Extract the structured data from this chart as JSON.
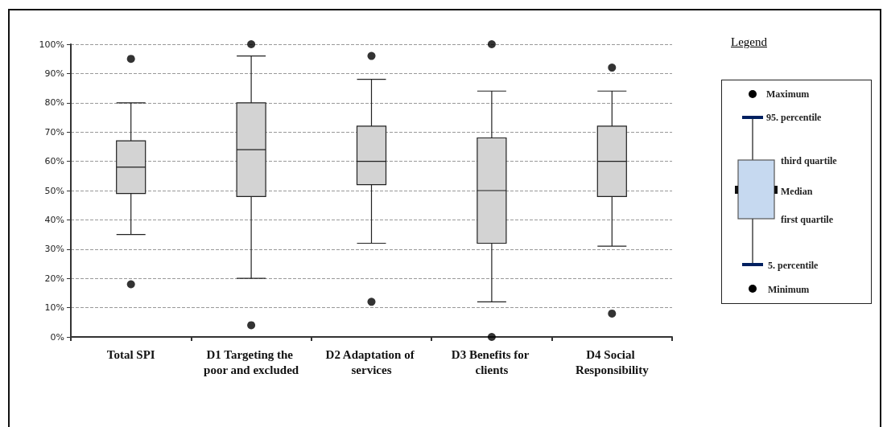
{
  "chart_data": {
    "type": "box",
    "categories": [
      "Total SPI",
      "D1 Targeting the poor and excluded",
      "D2 Adaptation of services",
      "D3 Benefits for clients",
      "D4 Social Responsibility"
    ],
    "color": "#d3d3d3",
    "boxes": [
      {
        "low": 35,
        "q1": 49,
        "median": 58,
        "q3": 67,
        "high": 80,
        "outliers": [
          95,
          18
        ]
      },
      {
        "low": 20,
        "q1": 48,
        "median": 64,
        "q3": 80,
        "high": 96,
        "outliers": [
          100,
          4
        ]
      },
      {
        "low": 32,
        "q1": 52,
        "median": 60,
        "q3": 72,
        "high": 88,
        "outliers": [
          96,
          12
        ]
      },
      {
        "low": 12,
        "q1": 32,
        "median": 50,
        "q3": 68,
        "high": 84,
        "outliers": [
          100,
          0
        ]
      },
      {
        "low": 31,
        "q1": 48,
        "median": 60,
        "q3": 72,
        "high": 84,
        "outliers": [
          92,
          8
        ]
      }
    ],
    "ylim": [
      0,
      100
    ],
    "yticks": [
      {
        "value": 0,
        "label": "0%"
      },
      {
        "value": 10,
        "label": "10%"
      },
      {
        "value": 20,
        "label": "20%"
      },
      {
        "value": 30,
        "label": "30%"
      },
      {
        "value": 40,
        "label": "40%"
      },
      {
        "value": 50,
        "label": "50%"
      },
      {
        "value": 60,
        "label": "60%"
      },
      {
        "value": 70,
        "label": "70%"
      },
      {
        "value": 80,
        "label": "80%"
      },
      {
        "value": 90,
        "label": "90%"
      },
      {
        "value": 100,
        "label": "100%"
      }
    ],
    "grid": "y",
    "legend_title": "Legend",
    "annotations": [
      "Maximum",
      "95. percentile",
      "third quartile",
      "Median",
      "first quartile",
      "5. percentile",
      "Minimum"
    ]
  }
}
